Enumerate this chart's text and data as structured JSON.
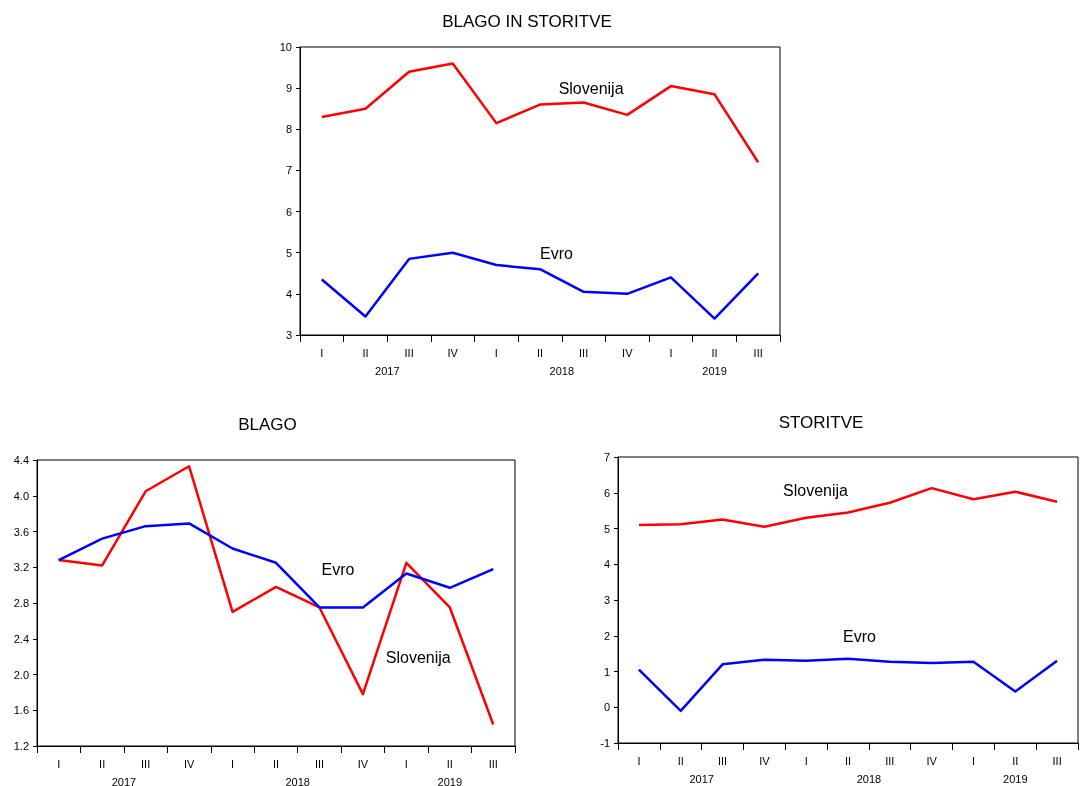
{
  "chart_data": [
    {
      "type": "line",
      "title": "BLAGO IN STORITVE",
      "categories": [
        "I",
        "II",
        "III",
        "IV",
        "I",
        "II",
        "III",
        "IV",
        "I",
        "II",
        "III"
      ],
      "ylim": [
        3,
        10
      ],
      "yticks": [
        3,
        4,
        5,
        6,
        7,
        8,
        9,
        10
      ],
      "marker": "none",
      "annotations": [
        "2017",
        "2018",
        "2019"
      ],
      "series": [
        {
          "name": "Slovenija",
          "color": "#ff0000",
          "values": [
            8.3,
            8.5,
            9.4,
            9.6,
            8.15,
            8.6,
            8.65,
            8.35,
            9.05,
            8.85,
            7.2
          ]
        },
        {
          "name": "Evro",
          "color": "#0000ff",
          "values": [
            4.35,
            3.45,
            4.85,
            5.0,
            4.7,
            4.6,
            4.05,
            4.0,
            4.4,
            3.4,
            4.5
          ]
        }
      ]
    },
    {
      "type": "line",
      "title": "BLAGO",
      "categories": [
        "I",
        "II",
        "III",
        "IV",
        "I",
        "II",
        "III",
        "IV",
        "I",
        "II",
        "III"
      ],
      "ylim": [
        1.2,
        4.4
      ],
      "yticks": [
        1.2,
        1.6,
        {
          "value": 2,
          "label": "2.0"
        },
        2.4,
        2.8,
        3.2,
        3.6,
        {
          "value": 4,
          "label": "4.0"
        },
        4.4
      ],
      "marker": "none",
      "annotations": [
        "2017",
        "2018",
        "2019"
      ],
      "series": [
        {
          "name": "Slovenija",
          "color": "#ff0000",
          "values": [
            3.28,
            3.22,
            4.05,
            4.33,
            2.7,
            2.98,
            2.75,
            1.78,
            3.25,
            2.75,
            1.44
          ]
        },
        {
          "name": "Evro",
          "color": "#0000ff",
          "values": [
            3.28,
            3.52,
            3.66,
            3.69,
            3.41,
            3.25,
            2.75,
            2.75,
            3.13,
            2.97,
            3.18
          ]
        }
      ]
    },
    {
      "type": "line",
      "title": "STORITVE",
      "categories": [
        "I",
        "II",
        "III",
        "IV",
        "I",
        "II",
        "III",
        "IV",
        "I",
        "II",
        "III"
      ],
      "ylim": [
        -1,
        7
      ],
      "yticks": [
        -1,
        0,
        1,
        2,
        3,
        4,
        5,
        6,
        7
      ],
      "marker": "none",
      "annotations": [
        "2017",
        "2018",
        "2019"
      ],
      "series": [
        {
          "name": "Slovenija",
          "color": "#ff0000",
          "values": [
            5.1,
            5.12,
            5.25,
            5.05,
            5.3,
            5.45,
            5.72,
            6.13,
            5.82,
            6.03,
            5.75
          ]
        },
        {
          "name": "Evro",
          "color": "#0000ff",
          "values": [
            1.05,
            -0.1,
            1.2,
            1.33,
            1.3,
            1.36,
            1.27,
            1.24,
            1.27,
            0.44,
            1.3
          ]
        }
      ]
    }
  ]
}
